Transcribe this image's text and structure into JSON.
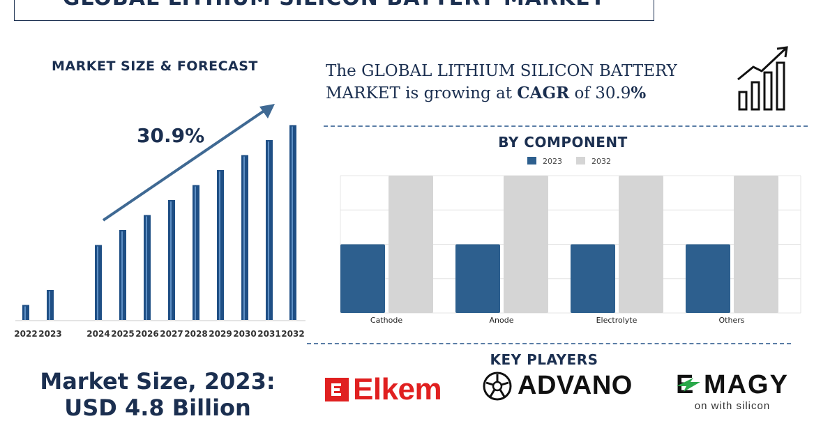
{
  "header": {
    "title": "GLOBAL LITHIUM SILICON BATTERY MARKET"
  },
  "left_panel": {
    "heading": "MARKET SIZE & FORECAST",
    "cagr_label": "30.9%",
    "market_size_line1": "Market Size, 2023:",
    "market_size_line2": "USD 4.8 Billion"
  },
  "right_panel": {
    "growth_prefix": "The GLOBAL LITHIUM SILICON BATTERY MARKET is growing at ",
    "growth_cagr_word": "CAGR",
    "growth_of": " of 30.9",
    "growth_pct": "%",
    "component_heading": "BY COMPONENT",
    "key_players_heading": "KEY PLAYERS",
    "growth_icon": "growth-chart-icon"
  },
  "key_players": [
    {
      "name": "Elkem",
      "icon": "elkem-logo-icon",
      "color": "#e02020"
    },
    {
      "name": "ADVANO",
      "icon": "advano-logo-icon",
      "color": "#111111"
    },
    {
      "name": "E MAGY",
      "subtitle": "on with silicon",
      "icon": "enmagy-logo-icon",
      "color": "#111111"
    }
  ],
  "colors": {
    "primary": "#1b2f50",
    "bar_2023": "#2d5f8e",
    "bar_2032": "#d5d5d5",
    "bar_forecast": "#1f4f85"
  },
  "chart_data": [
    {
      "type": "bar",
      "title": "MARKET SIZE & FORECAST",
      "categories": [
        "2022",
        "2023",
        "2024",
        "2025",
        "2026",
        "2027",
        "2028",
        "2029",
        "2030",
        "2031",
        "2032"
      ],
      "values": [
        1,
        2,
        5,
        6,
        7,
        8,
        9,
        10,
        11,
        12,
        13
      ],
      "ylim": [
        0,
        14
      ],
      "annotation": "30.9%",
      "xlabel": "",
      "ylabel": ""
    },
    {
      "type": "bar",
      "title": "BY COMPONENT",
      "categories": [
        "Cathode",
        "Anode",
        "Electrolyte",
        "Others"
      ],
      "series": [
        {
          "name": "2023",
          "values": [
            2,
            2,
            2,
            2
          ]
        },
        {
          "name": "2032",
          "values": [
            4,
            4,
            4,
            4
          ]
        }
      ],
      "ylim": [
        0,
        4
      ],
      "legend": "top-center",
      "grid": true,
      "xlabel": "",
      "ylabel": ""
    }
  ]
}
